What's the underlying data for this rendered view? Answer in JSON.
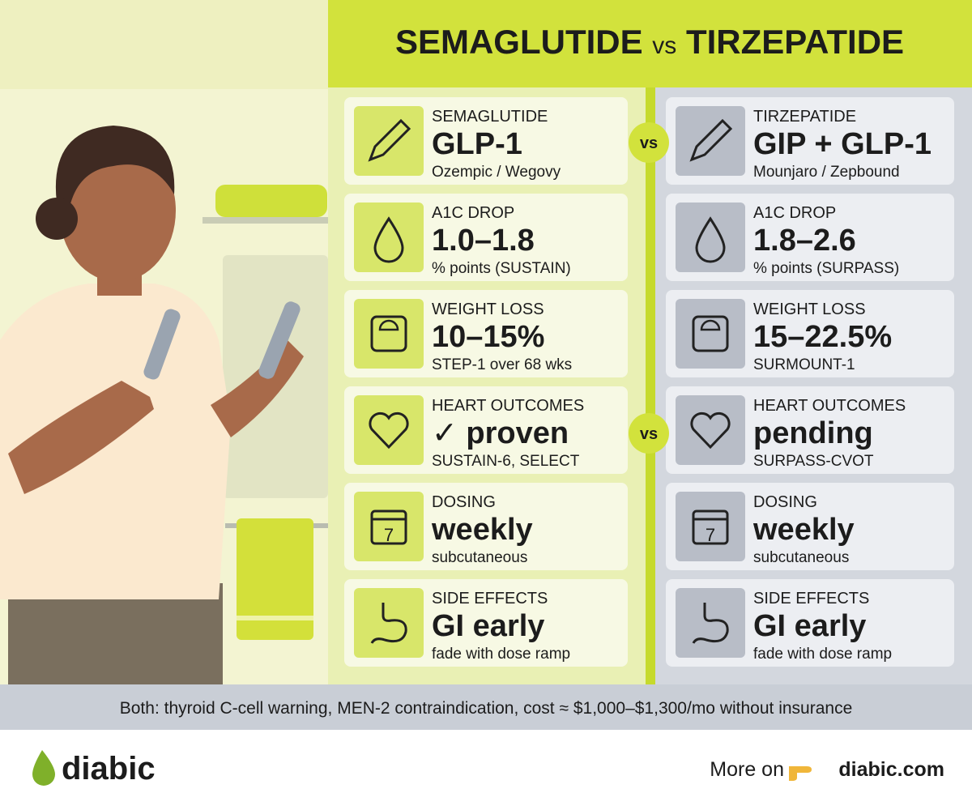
{
  "header": {
    "title_left": "SEMAGLUTIDE",
    "title_vs": "vs",
    "title_right": "TIRZEPATIDE"
  },
  "columns": [
    {
      "rows": [
        {
          "label": "SEMAGLUTIDE",
          "value": "GLP-1",
          "note": "Ozempic / Wegovy"
        },
        {
          "label": "A1C DROP",
          "value": "1.0–1.8",
          "note": "% points (SUSTAIN)"
        },
        {
          "label": "WEIGHT LOSS",
          "value": "10–15%",
          "note": "STEP-1 over 68 wks"
        },
        {
          "label": "HEART OUTCOMES",
          "value": "✓ proven",
          "note": "SUSTAIN-6, SELECT"
        },
        {
          "label": "DOSING",
          "value": "weekly",
          "note": "subcutaneous",
          "icon_text": "7"
        },
        {
          "label": "SIDE EFFECTS",
          "value": "GI early",
          "note": "fade with dose ramp"
        }
      ]
    },
    {
      "rows": [
        {
          "label": "TIRZEPATIDE",
          "value": "GIP + GLP-1",
          "note": "Mounjaro / Zepbound"
        },
        {
          "label": "A1C DROP",
          "value": "1.8–2.6",
          "note": "% points (SURPASS)"
        },
        {
          "label": "WEIGHT LOSS",
          "value": "15–22.5%",
          "note": "SURMOUNT-1"
        },
        {
          "label": "HEART OUTCOMES",
          "value": "pending",
          "note": "SURPASS-CVOT"
        },
        {
          "label": "DOSING",
          "value": "weekly",
          "note": "subcutaneous",
          "icon_text": "7"
        },
        {
          "label": "SIDE EFFECTS",
          "value": "GI early",
          "note": "fade with dose ramp"
        }
      ]
    }
  ],
  "vs_badges": [
    "vs",
    "vs"
  ],
  "footer_note": "Both: thyroid C-cell warning, MEN-2 contraindication, cost ≈ $1,000–$1,300/mo without insurance",
  "brand": "diabic",
  "more": {
    "text": "More on",
    "link": "diabic.com"
  }
}
